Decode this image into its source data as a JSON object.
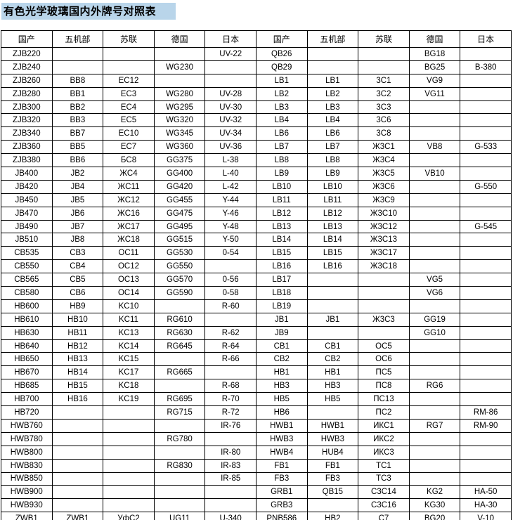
{
  "title": "有色光学玻璃国内外牌号对照表",
  "table": {
    "headers": [
      "国产",
      "五机部",
      "苏联",
      "德国",
      "日本",
      "国产",
      "五机部",
      "苏联",
      "德国",
      "日本"
    ],
    "rows": [
      [
        "ZJB220",
        "",
        "",
        "",
        "UV-22",
        "QB26",
        "",
        "",
        "BG18",
        ""
      ],
      [
        "ZJB240",
        "",
        "",
        "WG230",
        "",
        "QB29",
        "",
        "",
        "BG25",
        "B-380"
      ],
      [
        "ZJB260",
        "BB8",
        "EC12",
        "",
        "",
        "LB1",
        "LB1",
        "3C1",
        "VG9",
        ""
      ],
      [
        "ZJB280",
        "BB1",
        "EC3",
        "WG280",
        "UV-28",
        "LB2",
        "LB2",
        "3C2",
        "VG11",
        ""
      ],
      [
        "ZJB300",
        "BB2",
        "EC4",
        "WG295",
        "UV-30",
        "LB3",
        "LB3",
        "3C3",
        "",
        ""
      ],
      [
        "ZJB320",
        "BB3",
        "EC5",
        "WG320",
        "UV-32",
        "LB4",
        "LB4",
        "3C6",
        "",
        ""
      ],
      [
        "ZJB340",
        "BB7",
        "EC10",
        "WG345",
        "UV-34",
        "LB6",
        "LB6",
        "3C8",
        "",
        ""
      ],
      [
        "ZJB360",
        "BB5",
        "EC7",
        "WG360",
        "UV-36",
        "LB7",
        "LB7",
        "Ж3C1",
        "VB8",
        "G-533"
      ],
      [
        "ZJB380",
        "BB6",
        "БC8",
        "GG375",
        "L-38",
        "LB8",
        "LB8",
        "Ж3C4",
        "",
        ""
      ],
      [
        "JB400",
        "JB2",
        "ЖC4",
        "GG400",
        "L-40",
        "LB9",
        "LB9",
        "Ж3C5",
        "VB10",
        ""
      ],
      [
        "JB420",
        "JB4",
        "ЖC11",
        "GG420",
        "L-42",
        "LB10",
        "LB10",
        "Ж3C6",
        "",
        "G-550"
      ],
      [
        "JB450",
        "JB5",
        "ЖC12",
        "GG455",
        "Y-44",
        "LB11",
        "LB11",
        "Ж3C9",
        "",
        ""
      ],
      [
        "JB470",
        "JB6",
        "ЖC16",
        "GG475",
        "Y-46",
        "LB12",
        "LB12",
        "Ж3C10",
        "",
        ""
      ],
      [
        "JB490",
        "JB7",
        "ЖC17",
        "GG495",
        "Y-48",
        "LB13",
        "LB13",
        "Ж3C12",
        "",
        "G-545"
      ],
      [
        "JB510",
        "JB8",
        "ЖC18",
        "GG515",
        "Y-50",
        "LB14",
        "LB14",
        "Ж3C13",
        "",
        ""
      ],
      [
        "CB535",
        "CB3",
        "OC11",
        "GG530",
        "0-54",
        "LB15",
        "LB15",
        "Ж3C17",
        "",
        ""
      ],
      [
        "CB550",
        "CB4",
        "OC12",
        "GG550",
        "",
        "LB16",
        "LB16",
        "Ж3C18",
        "",
        ""
      ],
      [
        "CB565",
        "CB5",
        "OC13",
        "GG570",
        "0-56",
        "LB17",
        "",
        "",
        "VG5",
        ""
      ],
      [
        "CB580",
        "CB6",
        "OC14",
        "GG590",
        "0-58",
        "LB18",
        "",
        "",
        "VG6",
        ""
      ],
      [
        "HB600",
        "HB9",
        "KC10",
        "",
        "R-60",
        "LB19",
        "",
        "",
        "",
        ""
      ],
      [
        "HB610",
        "HB10",
        "KC11",
        "RG610",
        "",
        "JB1",
        "JB1",
        "Ж3C3",
        "GG19",
        ""
      ],
      [
        "HB630",
        "HB11",
        "KC13",
        "RG630",
        "R-62",
        "JB9",
        "",
        "",
        "GG10",
        ""
      ],
      [
        "HB640",
        "HB12",
        "KC14",
        "RG645",
        "R-64",
        "CB1",
        "CB1",
        "OC5",
        "",
        ""
      ],
      [
        "HB650",
        "HB13",
        "KC15",
        "",
        "R-66",
        "CB2",
        "CB2",
        "OC6",
        "",
        ""
      ],
      [
        "HB670",
        "HB14",
        "KC17",
        "RG665",
        "",
        "HB1",
        "HB1",
        "ПC5",
        "",
        ""
      ],
      [
        "HB685",
        "HB15",
        "KC18",
        "",
        "R-68",
        "HB3",
        "HB3",
        "ПC8",
        "RG6",
        ""
      ],
      [
        "HB700",
        "HB16",
        "KC19",
        "RG695",
        "R-70",
        "HB5",
        "HB5",
        "ПC13",
        "",
        ""
      ],
      [
        "HB720",
        "",
        "",
        "RG715",
        "R-72",
        "HB6",
        "",
        "ПC2",
        "",
        "RM-86"
      ],
      [
        "HWB760",
        "",
        "",
        "",
        "IR-76",
        "HWB1",
        "HWB1",
        "ИКC1",
        "RG7",
        "RM-90"
      ],
      [
        "HWB780",
        "",
        "",
        "RG780",
        "",
        "HWB3",
        "HWB3",
        "ИКC2",
        "",
        ""
      ],
      [
        "HWB800",
        "",
        "",
        "",
        "IR-80",
        "HWB4",
        "HUB4",
        "ИКC3",
        "",
        ""
      ],
      [
        "HWB830",
        "",
        "",
        "RG830",
        "IR-83",
        "FB1",
        "FB1",
        "TC1",
        "",
        ""
      ],
      [
        "HWB850",
        "",
        "",
        "",
        "IR-85",
        "FB3",
        "FB3",
        "TC3",
        "",
        ""
      ],
      [
        "HWB900",
        "",
        "",
        "",
        "",
        "GRB1",
        "QB15",
        "C3C14",
        "KG2",
        "HA-50"
      ],
      [
        "HWB930",
        "",
        "",
        "",
        "",
        "GRB3",
        "",
        "C3C16",
        "KG30",
        "HA-30"
      ],
      [
        "ZWB1",
        "ZWB1",
        "УфC2",
        "UG11",
        "U-340",
        "PNB586",
        "HB2",
        "C7",
        "BG20",
        "V-10"
      ]
    ]
  }
}
